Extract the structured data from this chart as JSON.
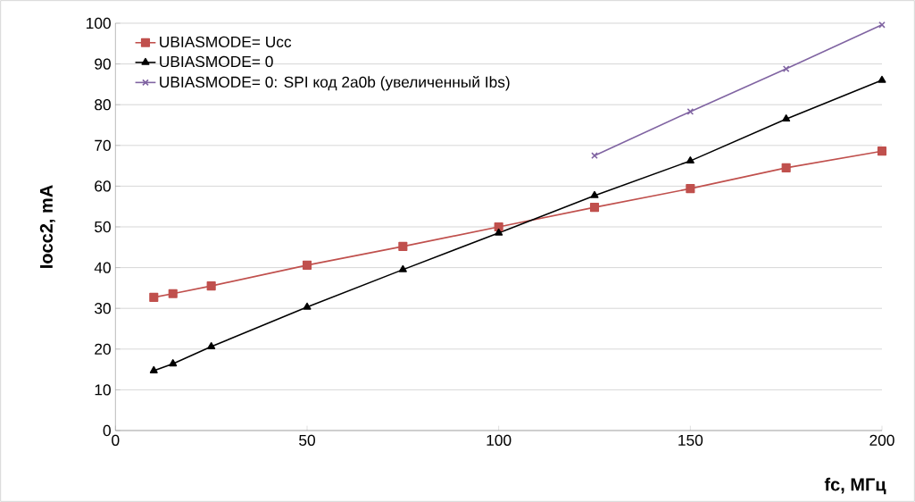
{
  "chart_data": {
    "type": "line",
    "xlabel": "fc, МГц",
    "ylabel": "Iocc2, mA",
    "xlim": [
      0,
      200
    ],
    "xticks": [
      0,
      50,
      100,
      150,
      200
    ],
    "ylim": [
      0,
      100
    ],
    "yticks": [
      0,
      10,
      20,
      30,
      40,
      50,
      60,
      70,
      80,
      90,
      100
    ],
    "grid": "y",
    "legend": "top left",
    "line_style": "solid",
    "series": [
      {
        "name": "UBIASMODE= Ucc",
        "color": "#c0504d",
        "marker": "square",
        "x": [
          10,
          15,
          25,
          50,
          75,
          100,
          125,
          150,
          175,
          200
        ],
        "values": [
          32.7,
          33.6,
          35.5,
          40.6,
          45.2,
          50,
          54.8,
          59.4,
          64.5,
          68.6
        ]
      },
      {
        "name": "UBIASMODE= 0",
        "color": "#000000",
        "marker": "triangle",
        "x": [
          10,
          15,
          25,
          50,
          75,
          100,
          125,
          150,
          175,
          200
        ],
        "values": [
          14.7,
          16.4,
          20.6,
          30.3,
          39.5,
          48.5,
          57.7,
          66.2,
          76.5,
          86
        ]
      },
      {
        "name": "UBIASMODE= 0:  SPI код 2a0b (увеличенный Ibs)",
        "color": "#8064a2",
        "marker": "cross",
        "x": [
          125,
          150,
          175,
          200
        ],
        "values": [
          67.5,
          78.3,
          88.8,
          99.6
        ]
      }
    ]
  }
}
